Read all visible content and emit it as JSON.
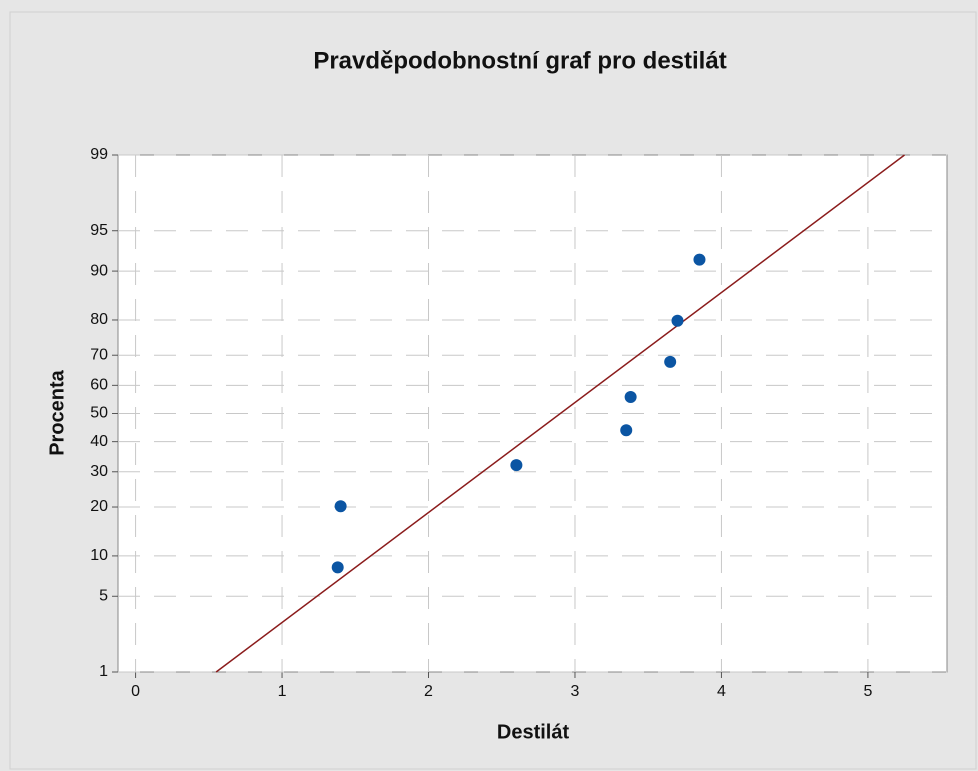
{
  "chart_data": {
    "type": "probability",
    "title": "Pravděpodobnostní graf pro destilát",
    "x_label": "Destilát",
    "y_label": "Procenta",
    "series": [
      {
        "color": "#0b55a3",
        "x": [
          1.38,
          1.4,
          2.6,
          3.35,
          3.38,
          3.65,
          3.7,
          3.85
        ],
        "values": [
          8.3,
          20.2,
          32.1,
          44.0,
          55.9,
          67.9,
          79.8,
          91.7
        ]
      }
    ],
    "fit_line": {
      "color": "#8b1c1c",
      "x": [
        0.55,
        5.25
      ],
      "values": [
        1,
        99
      ]
    },
    "xlim": [
      -0.12,
      5.54
    ],
    "xticks": [
      0,
      1,
      2,
      3,
      4,
      5
    ],
    "ylim": [
      1,
      99
    ],
    "yticks": [
      1,
      5,
      10,
      20,
      30,
      40,
      50,
      60,
      70,
      80,
      90,
      95,
      99
    ],
    "y_scale": "normal-probability",
    "grid": true
  }
}
